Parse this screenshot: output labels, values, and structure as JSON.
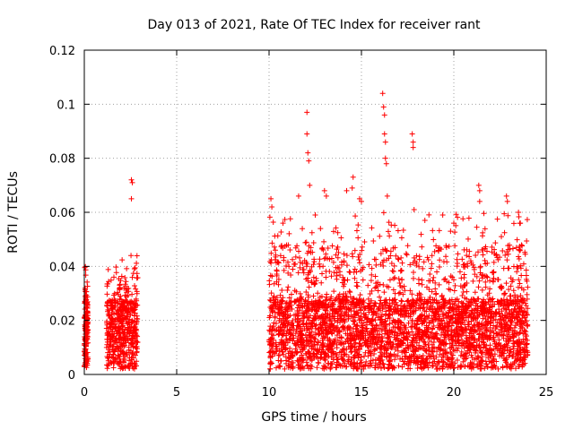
{
  "chart_data": {
    "type": "scatter",
    "title": "Day 013 of 2021, Rate Of TEC Index for receiver rant",
    "xlabel": "GPS time / hours",
    "ylabel": "ROTI / TECUs",
    "xlim": [
      0,
      25
    ],
    "ylim": [
      0,
      0.12
    ],
    "grid": true,
    "marker": "+",
    "color": "#ff0000",
    "x_ticks": [
      0,
      5,
      10,
      15,
      20,
      25
    ],
    "x_tick_labels": [
      "0",
      "5",
      "10",
      "15",
      "20",
      "25"
    ],
    "y_ticks": [
      0,
      0.02,
      0.04,
      0.06,
      0.08,
      0.1,
      0.12
    ],
    "y_tick_labels": [
      "0",
      "0.02",
      "0.04",
      "0.06",
      "0.08",
      "0.1",
      "0.12"
    ],
    "data_segments": [
      {
        "x_range": [
          0.0,
          0.2
        ],
        "typical_max": 0.043,
        "note": "dense band up to ~0.043"
      },
      {
        "x_range": [
          1.2,
          2.9
        ],
        "typical_max": 0.045,
        "note": "dense band up to ~0.045"
      },
      {
        "x_range": [
          10.0,
          24.0
        ],
        "typical_max": 0.06,
        "note": "dense band, most points below 0.03"
      }
    ],
    "notable_points": [
      {
        "x": 2.55,
        "y": 0.072
      },
      {
        "x": 2.6,
        "y": 0.071
      },
      {
        "x": 2.55,
        "y": 0.065
      },
      {
        "x": 10.1,
        "y": 0.065
      },
      {
        "x": 10.15,
        "y": 0.062
      },
      {
        "x": 11.6,
        "y": 0.066
      },
      {
        "x": 12.05,
        "y": 0.097
      },
      {
        "x": 12.05,
        "y": 0.089
      },
      {
        "x": 12.1,
        "y": 0.082
      },
      {
        "x": 12.15,
        "y": 0.079
      },
      {
        "x": 12.2,
        "y": 0.07
      },
      {
        "x": 12.5,
        "y": 0.059
      },
      {
        "x": 13.0,
        "y": 0.068
      },
      {
        "x": 13.1,
        "y": 0.066
      },
      {
        "x": 14.2,
        "y": 0.068
      },
      {
        "x": 14.5,
        "y": 0.069
      },
      {
        "x": 14.55,
        "y": 0.073
      },
      {
        "x": 14.9,
        "y": 0.065
      },
      {
        "x": 15.0,
        "y": 0.064
      },
      {
        "x": 16.15,
        "y": 0.104
      },
      {
        "x": 16.2,
        "y": 0.099
      },
      {
        "x": 16.25,
        "y": 0.096
      },
      {
        "x": 16.25,
        "y": 0.089
      },
      {
        "x": 16.3,
        "y": 0.086
      },
      {
        "x": 16.3,
        "y": 0.08
      },
      {
        "x": 16.35,
        "y": 0.078
      },
      {
        "x": 16.4,
        "y": 0.066
      },
      {
        "x": 17.75,
        "y": 0.089
      },
      {
        "x": 17.8,
        "y": 0.086
      },
      {
        "x": 17.8,
        "y": 0.084
      },
      {
        "x": 17.85,
        "y": 0.061
      },
      {
        "x": 19.4,
        "y": 0.059
      },
      {
        "x": 20.0,
        "y": 0.056
      },
      {
        "x": 21.35,
        "y": 0.07
      },
      {
        "x": 21.4,
        "y": 0.068
      },
      {
        "x": 21.4,
        "y": 0.064
      },
      {
        "x": 22.85,
        "y": 0.066
      },
      {
        "x": 22.9,
        "y": 0.064
      },
      {
        "x": 23.5,
        "y": 0.06
      },
      {
        "x": 23.6,
        "y": 0.056
      }
    ]
  }
}
